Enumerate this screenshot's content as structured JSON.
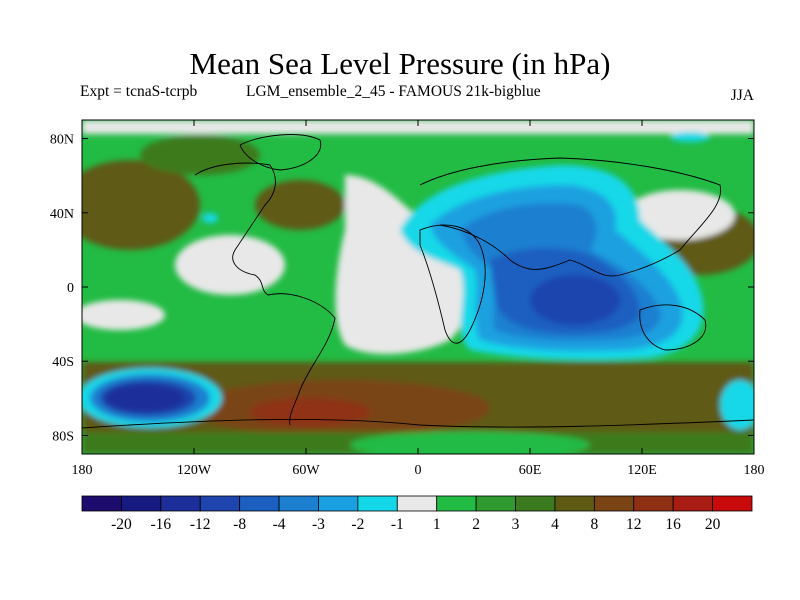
{
  "title": "Mean Sea Level Pressure (in hPa)",
  "experiment": "Expt = tcnaS-tcrpb",
  "ensemble": "LGM_ensemble_2_45 - FAMOUS 21k-bigblue",
  "season": "JJA",
  "axes": {
    "x_ticks": [
      "180",
      "120W",
      "60W",
      "0",
      "60E",
      "120E",
      "180"
    ],
    "y_ticks": [
      "80N",
      "40N",
      "0",
      "40S",
      "80S"
    ]
  },
  "colorbar": {
    "colors": [
      "#1e0b6e",
      "#171a80",
      "#1c2e99",
      "#1e44ad",
      "#1c5fc0",
      "#1c7fd0",
      "#1aa0e0",
      "#14d8e8",
      "#e8e8e8",
      "#22bb44",
      "#2f9a2f",
      "#3c7a1f",
      "#5e5a14",
      "#7a4414",
      "#8f3014",
      "#a81c14",
      "#c80a0a"
    ],
    "labels": [
      "-20",
      "-16",
      "-12",
      "-8",
      "-4",
      "-3",
      "-2",
      "-1",
      "1",
      "2",
      "3",
      "4",
      "8",
      "12",
      "16",
      "20"
    ]
  },
  "chart_data": {
    "type": "heatmap",
    "title": "Mean Sea Level Pressure (in hPa)",
    "x_range": [
      -180,
      180
    ],
    "y_range": [
      -90,
      90
    ],
    "x_ticks": [
      -180,
      -120,
      -60,
      0,
      60,
      120,
      180
    ],
    "y_ticks": [
      80,
      40,
      0,
      -40,
      -80
    ],
    "levels": [
      -20,
      -16,
      -12,
      -8,
      -4,
      -3,
      -2,
      -1,
      1,
      2,
      3,
      4,
      8,
      12,
      16,
      20
    ],
    "regions": [
      {
        "lon": 90,
        "lat": 0,
        "value": -6
      },
      {
        "lon": 100,
        "lat": -20,
        "value": -8
      },
      {
        "lon": 60,
        "lat": 40,
        "value": -4
      },
      {
        "lon": -150,
        "lat": -60,
        "value": -14
      },
      {
        "lon": -20,
        "lat": 20,
        "value": 0
      },
      {
        "lon": -120,
        "lat": -70,
        "value": 10
      },
      {
        "lon": -160,
        "lat": 45,
        "value": 5
      },
      {
        "lon": 160,
        "lat": 20,
        "value": 4
      }
    ]
  }
}
